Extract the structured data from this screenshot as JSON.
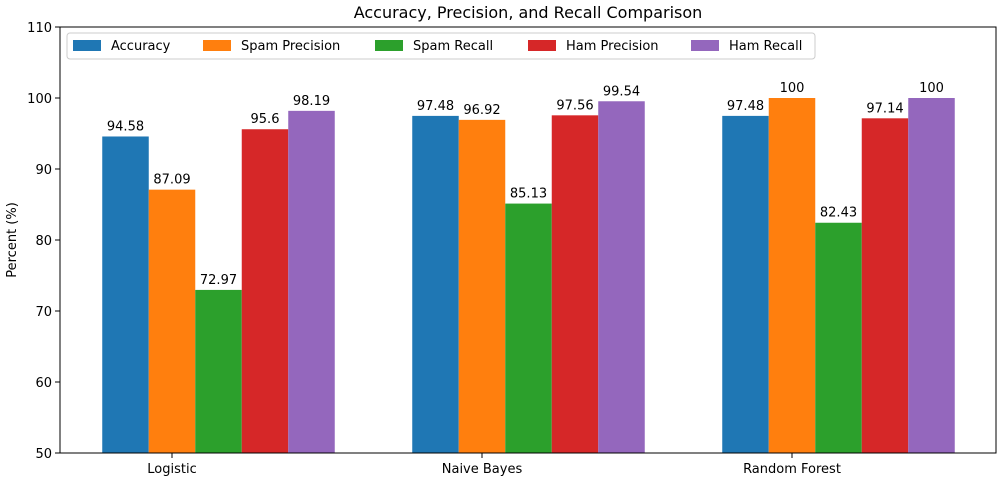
{
  "chart_data": {
    "type": "bar",
    "title": "Accuracy, Precision, and Recall Comparison",
    "xlabel": "",
    "ylabel": "Percent (%)",
    "ylim": [
      50,
      110
    ],
    "yticks": [
      50,
      60,
      70,
      80,
      90,
      100,
      110
    ],
    "categories": [
      "Logistic",
      "Naive Bayes",
      "Random Forest"
    ],
    "series": [
      {
        "name": "Accuracy",
        "color": "#1f77b4",
        "values": [
          94.58,
          97.48,
          97.48
        ],
        "labels": [
          "94.58",
          "97.48",
          "97.48"
        ]
      },
      {
        "name": "Spam Precision",
        "color": "#ff7f0e",
        "values": [
          87.09,
          96.92,
          100
        ],
        "labels": [
          "87.09",
          "96.92",
          "100"
        ]
      },
      {
        "name": "Spam Recall",
        "color": "#2ca02c",
        "values": [
          72.97,
          85.13,
          82.43
        ],
        "labels": [
          "72.97",
          "85.13",
          "82.43"
        ]
      },
      {
        "name": "Ham Precision",
        "color": "#d62728",
        "values": [
          95.6,
          97.56,
          97.14
        ],
        "labels": [
          "95.6",
          "97.56",
          "97.14"
        ]
      },
      {
        "name": "Ham Recall",
        "color": "#9467bd",
        "values": [
          98.19,
          99.54,
          100
        ],
        "labels": [
          "98.19",
          "99.54",
          "100"
        ]
      }
    ],
    "legend": "top-left",
    "grid": false
  }
}
